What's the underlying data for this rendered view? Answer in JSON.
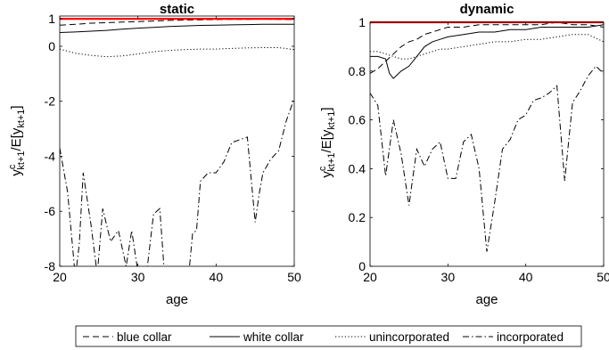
{
  "chart_data": [
    {
      "type": "line",
      "title": "static",
      "xlabel": "age",
      "ylabel_main": "y",
      "ylabel_sup": "c",
      "ylabel_sub": "kt+1",
      "ylabel_rest": "/E[y",
      "ylabel_sub2": "kt+1",
      "ylabel_end": "]",
      "xlim": [
        20,
        50
      ],
      "ylim": [
        -8,
        1.1
      ],
      "xticks": [
        20,
        30,
        40,
        50
      ],
      "xtick_labels": [
        "20",
        "30",
        "40",
        "50"
      ],
      "yticks": [
        -8,
        -6,
        -4,
        -2,
        0,
        1
      ],
      "ytick_labels": [
        "-8",
        "-6",
        "-4",
        "-2",
        "0",
        "1"
      ],
      "grid": false,
      "reference_line": {
        "y": 1,
        "color": "#ff0000"
      },
      "series": [
        {
          "name": "blue collar",
          "dash": "dash",
          "x": [
            20,
            22,
            24,
            26,
            28,
            30,
            32,
            34,
            36,
            38,
            40,
            42,
            44,
            46,
            48,
            50
          ],
          "y": [
            0.77,
            0.8,
            0.84,
            0.86,
            0.88,
            0.9,
            0.92,
            0.94,
            0.95,
            0.96,
            0.97,
            0.98,
            0.98,
            0.99,
            0.98,
            0.97
          ]
        },
        {
          "name": "white collar",
          "dash": "solid",
          "x": [
            20,
            22,
            24,
            26,
            28,
            30,
            32,
            34,
            36,
            38,
            40,
            42,
            44,
            46,
            48,
            50
          ],
          "y": [
            0.5,
            0.52,
            0.55,
            0.58,
            0.62,
            0.66,
            0.69,
            0.72,
            0.74,
            0.76,
            0.77,
            0.78,
            0.79,
            0.8,
            0.8,
            0.8
          ]
        },
        {
          "name": "unincorporated",
          "dash": "dot",
          "x": [
            20,
            22,
            24,
            26,
            28,
            30,
            32,
            34,
            36,
            38,
            40,
            42,
            44,
            46,
            48,
            50
          ],
          "y": [
            -0.1,
            -0.25,
            -0.33,
            -0.38,
            -0.35,
            -0.28,
            -0.2,
            -0.15,
            -0.12,
            -0.1,
            -0.1,
            -0.08,
            -0.06,
            -0.05,
            -0.05,
            -0.12
          ]
        },
        {
          "name": "incorporated",
          "dash": "dashdot",
          "x": [
            20,
            21,
            22,
            22.5,
            23,
            24,
            24.8,
            25.5,
            26.5,
            27.5,
            28.5,
            29.2,
            30,
            30.8,
            32,
            32.8,
            33.4,
            34,
            35,
            36,
            36.5,
            37,
            37.5,
            38,
            39,
            40,
            41,
            42,
            43,
            44,
            45,
            45.5,
            46,
            47,
            48,
            49,
            50
          ],
          "y": [
            -3.7,
            -5.3,
            -8.4,
            -7.2,
            -4.6,
            -6.5,
            -8.3,
            -5.9,
            -7.1,
            -6.7,
            -8.0,
            -6.7,
            -8.2,
            -9.0,
            -6.1,
            -5.9,
            -8.3,
            -10.0,
            -9.2,
            -9.0,
            -8.3,
            -6.8,
            -6.7,
            -4.9,
            -4.6,
            -4.6,
            -4.2,
            -3.5,
            -3.4,
            -3.3,
            -6.4,
            -5.4,
            -4.6,
            -4.1,
            -3.8,
            -2.7,
            -1.9
          ]
        }
      ]
    },
    {
      "type": "line",
      "title": "dynamic",
      "xlabel": "age",
      "ylabel_main": "y",
      "ylabel_sup": "c",
      "ylabel_sub": "kt+1",
      "ylabel_rest": "/E[y",
      "ylabel_sub2": "kt+1",
      "ylabel_end": "]",
      "xlim": [
        20,
        50
      ],
      "ylim": [
        0,
        1
      ],
      "xticks": [
        20,
        30,
        40,
        50
      ],
      "xtick_labels": [
        "20",
        "30",
        "40",
        "50"
      ],
      "yticks": [
        0,
        0.2,
        0.4,
        0.6,
        0.8,
        1
      ],
      "ytick_labels": [
        "0",
        "0.2",
        "0.4",
        "0.6",
        "0.8",
        "1"
      ],
      "grid": false,
      "reference_line": {
        "y": 1,
        "color": "#ff0000"
      },
      "series": [
        {
          "name": "blue collar",
          "dash": "dash",
          "x": [
            20,
            21,
            22,
            23,
            24,
            25,
            26,
            27,
            28,
            29,
            30,
            32,
            34,
            36,
            38,
            40,
            42,
            44,
            46,
            48,
            50
          ],
          "y": [
            0.79,
            0.81,
            0.84,
            0.87,
            0.9,
            0.92,
            0.93,
            0.95,
            0.96,
            0.97,
            0.98,
            0.98,
            0.99,
            0.99,
            0.99,
            0.99,
            0.99,
            1.0,
            0.99,
            0.99,
            0.98
          ]
        },
        {
          "name": "white collar",
          "dash": "solid",
          "x": [
            20,
            21,
            22,
            22.5,
            23,
            24,
            25,
            26,
            27,
            28,
            29,
            30,
            32,
            34,
            36,
            38,
            40,
            42,
            44,
            46,
            48,
            50
          ],
          "y": [
            0.86,
            0.86,
            0.85,
            0.79,
            0.77,
            0.8,
            0.82,
            0.86,
            0.9,
            0.92,
            0.93,
            0.94,
            0.95,
            0.96,
            0.96,
            0.97,
            0.97,
            0.98,
            0.98,
            0.98,
            0.98,
            0.99
          ]
        },
        {
          "name": "unincorporated",
          "dash": "dot",
          "x": [
            20,
            21,
            22,
            23,
            24,
            25,
            26,
            27,
            28,
            29,
            30,
            32,
            34,
            36,
            38,
            40,
            42,
            44,
            46,
            48,
            50
          ],
          "y": [
            0.88,
            0.88,
            0.87,
            0.86,
            0.85,
            0.85,
            0.86,
            0.87,
            0.88,
            0.89,
            0.89,
            0.9,
            0.91,
            0.92,
            0.92,
            0.93,
            0.93,
            0.94,
            0.95,
            0.95,
            0.92
          ]
        },
        {
          "name": "incorporated",
          "dash": "dashdot",
          "x": [
            20,
            21,
            22,
            23,
            24,
            25,
            26,
            27,
            28,
            29,
            30,
            31,
            32,
            33,
            34,
            35,
            36,
            37,
            38,
            39,
            40,
            41,
            42,
            43,
            44,
            45,
            46,
            47,
            48,
            49,
            50
          ],
          "y": [
            0.71,
            0.66,
            0.37,
            0.6,
            0.46,
            0.25,
            0.48,
            0.41,
            0.48,
            0.51,
            0.36,
            0.36,
            0.51,
            0.54,
            0.4,
            0.06,
            0.26,
            0.48,
            0.52,
            0.6,
            0.62,
            0.68,
            0.69,
            0.71,
            0.74,
            0.35,
            0.67,
            0.72,
            0.78,
            0.82,
            0.79
          ]
        }
      ]
    }
  ],
  "legend": {
    "placement": "bottom",
    "items": [
      {
        "label": "blue collar",
        "dash": "dash"
      },
      {
        "label": "white collar",
        "dash": "solid"
      },
      {
        "label": "unincorporated",
        "dash": "dot"
      },
      {
        "label": "incorporated",
        "dash": "dashdot"
      }
    ]
  }
}
